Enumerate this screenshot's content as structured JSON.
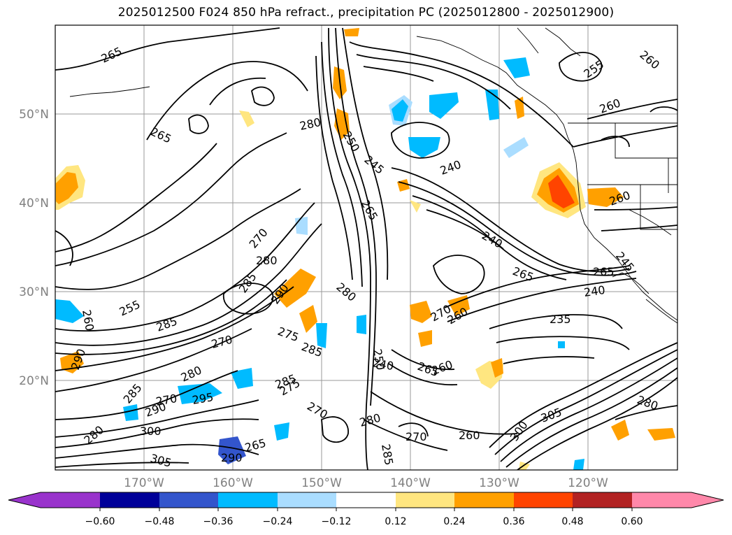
{
  "title": "2025012500 F024 850 hPa refract., precipitation PC (2025012800 - 2025012900)",
  "axes": {
    "lat_ticks": [
      "50°N",
      "40°N",
      "30°N",
      "20°N"
    ],
    "lon_ticks": [
      "170°W",
      "160°W",
      "150°W",
      "140°W",
      "130°W",
      "120°W"
    ]
  },
  "colorbar": {
    "tick_labels": [
      "−0.60",
      "−0.48",
      "−0.36",
      "−0.24",
      "−0.12",
      "0.12",
      "0.24",
      "0.36",
      "0.48",
      "0.60"
    ],
    "colors": [
      "#9933cc",
      "#000099",
      "#3355cc",
      "#00bbff",
      "#aaddff",
      "#ffffff",
      "#ffe680",
      "#ffa000",
      "#ff4400",
      "#b22222",
      "#ff88aa"
    ]
  },
  "contour_labels": [
    {
      "text": "265"
    },
    {
      "text": "265"
    },
    {
      "text": "280"
    },
    {
      "text": "250"
    },
    {
      "text": "245"
    },
    {
      "text": "240"
    },
    {
      "text": "265"
    },
    {
      "text": "240"
    },
    {
      "text": "260"
    },
    {
      "text": "255"
    },
    {
      "text": "260"
    },
    {
      "text": "260"
    },
    {
      "text": "245"
    },
    {
      "text": "265"
    },
    {
      "text": "240"
    },
    {
      "text": "235"
    },
    {
      "text": "270"
    },
    {
      "text": "280"
    },
    {
      "text": "285"
    },
    {
      "text": "290"
    },
    {
      "text": "260"
    },
    {
      "text": "255"
    },
    {
      "text": "285"
    },
    {
      "text": "270"
    },
    {
      "text": "275"
    },
    {
      "text": "285"
    },
    {
      "text": "290"
    },
    {
      "text": "280"
    },
    {
      "text": "285"
    },
    {
      "text": "270"
    },
    {
      "text": "275"
    },
    {
      "text": "270"
    },
    {
      "text": "295"
    },
    {
      "text": "290"
    },
    {
      "text": "285"
    },
    {
      "text": "280"
    },
    {
      "text": "280"
    },
    {
      "text": "270"
    },
    {
      "text": "260"
    },
    {
      "text": "285"
    },
    {
      "text": "270"
    },
    {
      "text": "260"
    },
    {
      "text": "265"
    },
    {
      "text": "260"
    },
    {
      "text": "265"
    },
    {
      "text": "250"
    },
    {
      "text": "300"
    },
    {
      "text": "305"
    },
    {
      "text": "280"
    },
    {
      "text": "300"
    },
    {
      "text": "305"
    },
    {
      "text": "265"
    },
    {
      "text": "290"
    },
    {
      "text": "280"
    },
    {
      "text": "240"
    }
  ]
}
